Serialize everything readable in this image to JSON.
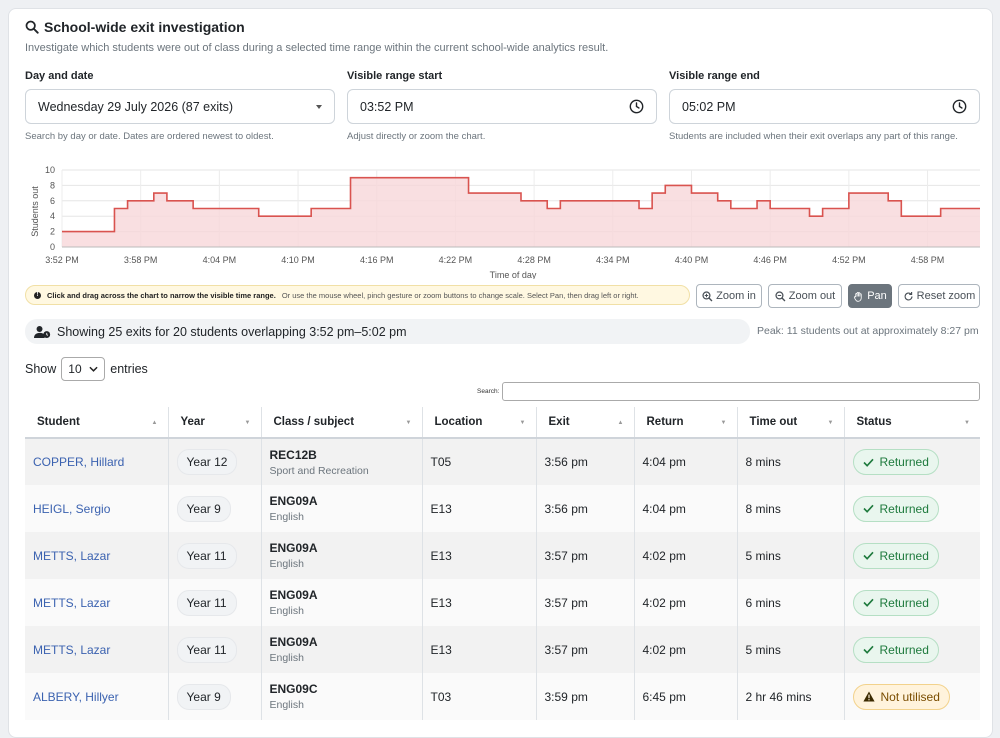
{
  "header": {
    "title": "School-wide exit investigation",
    "subtitle": "Investigate which students were out of class during a selected time range within the current school-wide analytics result."
  },
  "filters": {
    "day": {
      "label": "Day and date",
      "value": "Wednesday 29 July 2026 (87 exits)",
      "help": "Search by day or date. Dates are ordered newest to oldest."
    },
    "start": {
      "label": "Visible range start",
      "value": "03:52  PM",
      "help": "Adjust directly or zoom the chart."
    },
    "end": {
      "label": "Visible range end",
      "value": "05:02  PM",
      "help": "Students are included when their exit overlaps any part of this range."
    }
  },
  "chart_data": {
    "type": "area",
    "xlabel": "Time of day",
    "ylabel": "Students out",
    "ylim": [
      0,
      10
    ],
    "yticks": [
      "0",
      "2",
      "4",
      "6",
      "8",
      "10"
    ],
    "xticks": [
      "3:52 PM",
      "3:58 PM",
      "4:04 PM",
      "4:10 PM",
      "4:16 PM",
      "4:22 PM",
      "4:28 PM",
      "4:34 PM",
      "4:40 PM",
      "4:46 PM",
      "4:52 PM",
      "4:58 PM"
    ],
    "xrange_minutes": [
      0,
      70
    ],
    "step_x_minutes": [
      0,
      4,
      5,
      6,
      7,
      8,
      10,
      12,
      15,
      18,
      19,
      22,
      25,
      31,
      35,
      37,
      38,
      40,
      44,
      45,
      46,
      48,
      49,
      50,
      51,
      53,
      54,
      56,
      57,
      58,
      59,
      60,
      63,
      64,
      67,
      70
    ],
    "step_y": [
      2,
      5,
      6,
      6,
      7,
      6,
      5,
      5,
      4,
      4,
      5,
      9,
      9,
      7,
      6,
      5,
      6,
      6,
      5,
      7,
      8,
      7,
      7,
      6,
      5,
      6,
      5,
      5,
      4,
      5,
      5,
      7,
      6,
      4,
      5,
      5
    ],
    "color": "#d9534f",
    "fill": "#f8d7da"
  },
  "hint": {
    "bold": "Click and drag across the chart to narrow the visible time range.",
    "rest": "Or use the mouse wheel, pinch gesture or zoom buttons to change scale. Select Pan, then drag left or right."
  },
  "controls": {
    "zoom_in": "Zoom in",
    "zoom_out": "Zoom out",
    "pan": "Pan",
    "reset": "Reset zoom"
  },
  "summary": {
    "text": "Showing 25 exits for 20 students overlapping 3:52 pm–5:02 pm",
    "peak": "Peak: 11 students out at approximately 8:27 pm"
  },
  "table": {
    "show_label": "Show",
    "entries_value": "10",
    "entries_label": "entries",
    "search_label": "Search:",
    "columns": [
      "Student",
      "Year",
      "Class / subject",
      "Location",
      "Exit",
      "Return",
      "Time out",
      "Status"
    ],
    "rows": [
      {
        "student": "COPPER, Hillard",
        "year": "Year 12",
        "code": "REC12B",
        "subject": "Sport and Recreation",
        "location": "T05",
        "exit": "3:56 pm",
        "return": "4:04 pm",
        "time_out": "8 mins",
        "status": "Returned"
      },
      {
        "student": "HEIGL, Sergio",
        "year": "Year 9",
        "code": "ENG09A",
        "subject": "English",
        "location": "E13",
        "exit": "3:56 pm",
        "return": "4:04 pm",
        "time_out": "8 mins",
        "status": "Returned"
      },
      {
        "student": "METTS, Lazar",
        "year": "Year 11",
        "code": "ENG09A",
        "subject": "English",
        "location": "E13",
        "exit": "3:57 pm",
        "return": "4:02 pm",
        "time_out": "5 mins",
        "status": "Returned"
      },
      {
        "student": "METTS, Lazar",
        "year": "Year 11",
        "code": "ENG09A",
        "subject": "English",
        "location": "E13",
        "exit": "3:57 pm",
        "return": "4:02 pm",
        "time_out": "6 mins",
        "status": "Returned"
      },
      {
        "student": "METTS, Lazar",
        "year": "Year 11",
        "code": "ENG09A",
        "subject": "English",
        "location": "E13",
        "exit": "3:57 pm",
        "return": "4:02 pm",
        "time_out": "5 mins",
        "status": "Returned"
      },
      {
        "student": "ALBERY, Hillyer",
        "year": "Year 9",
        "code": "ENG09C",
        "subject": "English",
        "location": "T03",
        "exit": "3:59 pm",
        "return": "6:45 pm",
        "time_out": "2 hr 46 mins",
        "status": "Not utilised"
      }
    ]
  }
}
